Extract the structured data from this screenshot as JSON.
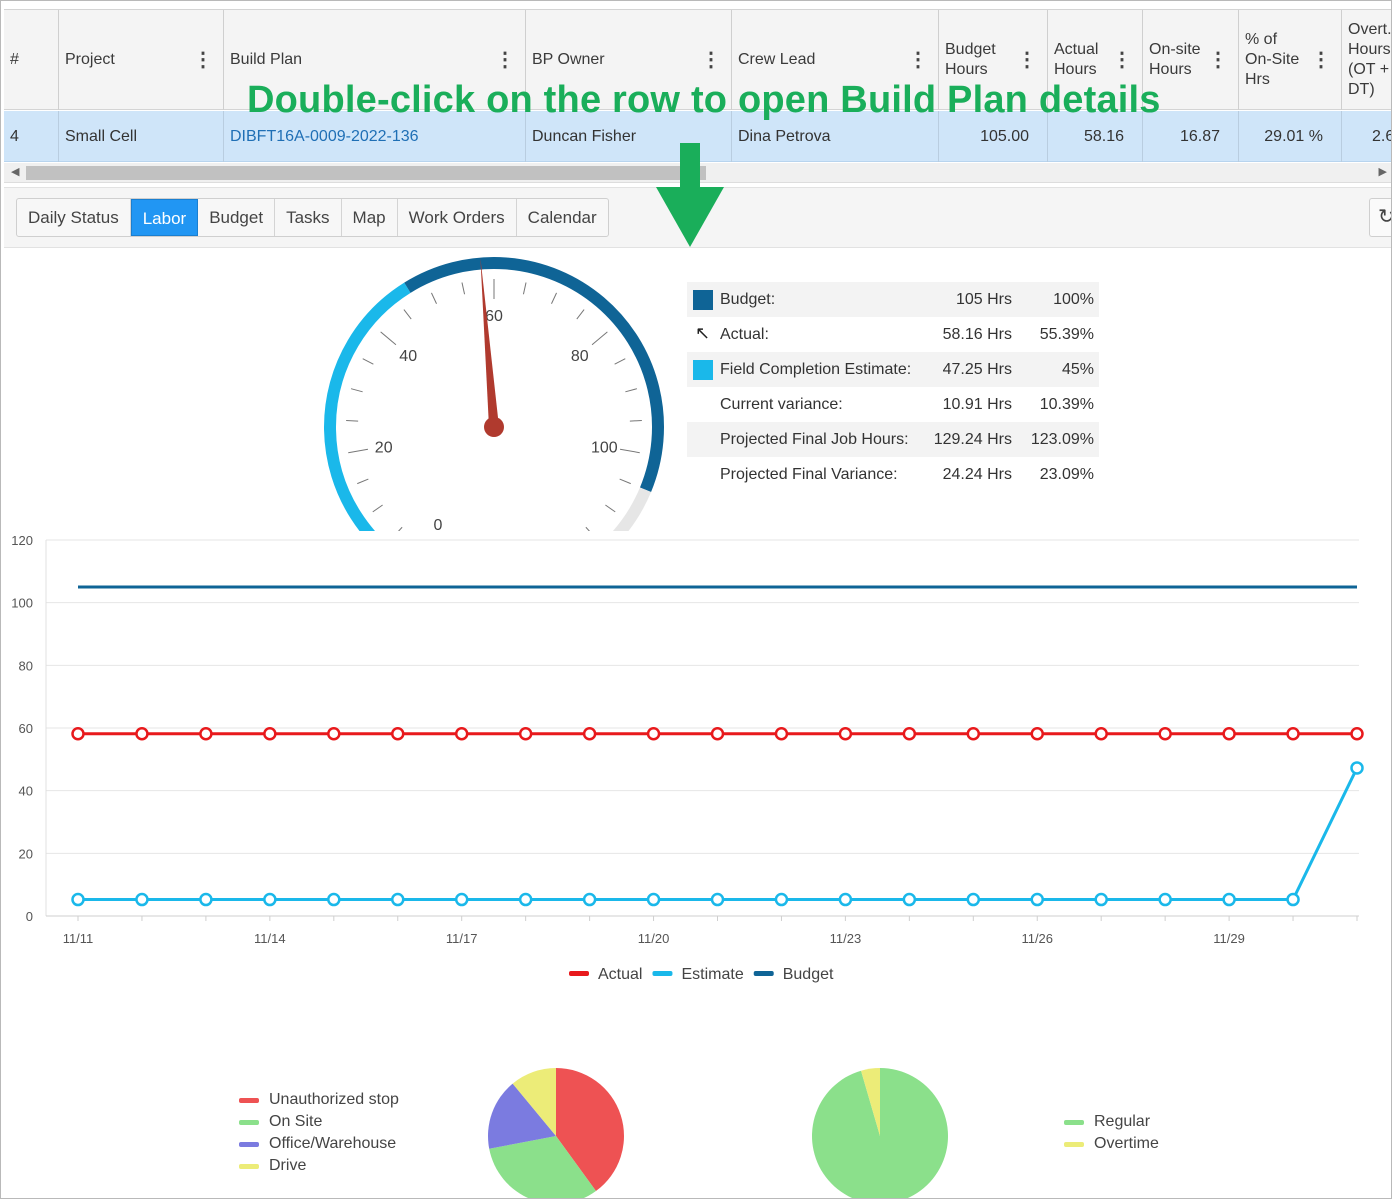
{
  "grid": {
    "columns": [
      {
        "label": "#",
        "menu": false
      },
      {
        "label": "Project",
        "menu": true
      },
      {
        "label": "Build Plan",
        "menu": true
      },
      {
        "label": "BP Owner",
        "menu": true
      },
      {
        "label": "Crew Lead",
        "menu": true
      },
      {
        "label": "Budget Hours",
        "menu": true
      },
      {
        "label": "Actual Hours",
        "menu": true
      },
      {
        "label": "On-site Hours",
        "menu": true
      },
      {
        "label": "% of On-Site Hrs",
        "menu": true
      },
      {
        "label": "Overt. Hours (OT + DT)",
        "menu": false
      }
    ],
    "row": {
      "index": "4",
      "project": "Small Cell",
      "build_plan": "DIBFT16A-0009-2022-136",
      "bp_owner": "Duncan Fisher",
      "crew_lead": "Dina Petrova",
      "budget_hours": "105.00",
      "actual_hours": "58.16",
      "onsite_hours": "16.87",
      "pct_onsite": "29.01 %",
      "overtime": "2.6"
    }
  },
  "overlay": {
    "instruction": "Double-click on the row to open Build Plan details",
    "color": "#1aae5a"
  },
  "tabs": [
    {
      "label": "Daily Status",
      "active": false
    },
    {
      "label": "Labor",
      "active": true
    },
    {
      "label": "Budget",
      "active": false
    },
    {
      "label": "Tasks",
      "active": false
    },
    {
      "label": "Map",
      "active": false
    },
    {
      "label": "Work Orders",
      "active": false
    },
    {
      "label": "Calendar",
      "active": false
    }
  ],
  "refresh_icon": "refresh-icon",
  "gauge": {
    "min": 0,
    "max": 120,
    "value": 58.16,
    "estimate": 47.25,
    "budget": 105,
    "tick_labels": [
      "0",
      "20",
      "40",
      "60",
      "80",
      "100"
    ],
    "colors": {
      "estimate": "#1ab8ea",
      "budget": "#0f6496",
      "rest": "#e6e6e6",
      "needle": "#b03a2e"
    }
  },
  "summary": [
    {
      "label": "Budget:",
      "hours": "105 Hrs",
      "pct": "100%",
      "marker": "swatch",
      "color": "#0f6496"
    },
    {
      "label": "Actual:",
      "hours": "58.16 Hrs",
      "pct": "55.39%",
      "marker": "pointer-icon",
      "color": ""
    },
    {
      "label": "Field Completion Estimate:",
      "hours": "47.25 Hrs",
      "pct": "45%",
      "marker": "swatch",
      "color": "#1ab8ea"
    },
    {
      "label": "Current variance:",
      "hours": "10.91 Hrs",
      "pct": "10.39%",
      "marker": "none",
      "color": ""
    },
    {
      "label": "Projected Final Job Hours:",
      "hours": "129.24 Hrs",
      "pct": "123.09%",
      "marker": "none",
      "color": ""
    },
    {
      "label": "Projected Final Variance:",
      "hours": "24.24 Hrs",
      "pct": "23.09%",
      "marker": "none",
      "color": ""
    }
  ],
  "chart_data": [
    {
      "type": "line",
      "x": [
        "11/11",
        "11/12",
        "11/13",
        "11/14",
        "11/15",
        "11/16",
        "11/17",
        "11/18",
        "11/19",
        "11/20",
        "11/21",
        "11/22",
        "11/23",
        "11/24",
        "11/25",
        "11/26",
        "11/27",
        "11/28",
        "11/29",
        "11/30",
        "12/1"
      ],
      "x_tick_labels": [
        "11/11",
        "11/14",
        "11/17",
        "11/20",
        "11/23",
        "11/26",
        "11/29"
      ],
      "ylim": [
        0,
        120
      ],
      "y_ticks": [
        0,
        20,
        40,
        60,
        80,
        100,
        120
      ],
      "grid": true,
      "legend": "bottom",
      "series": [
        {
          "name": "Actual",
          "color": "#e8191c",
          "markers": true,
          "values": [
            58.16,
            58.16,
            58.16,
            58.16,
            58.16,
            58.16,
            58.16,
            58.16,
            58.16,
            58.16,
            58.16,
            58.16,
            58.16,
            58.16,
            58.16,
            58.16,
            58.16,
            58.16,
            58.16,
            58.16,
            58.16
          ]
        },
        {
          "name": "Estimate",
          "color": "#1ab8ea",
          "markers": true,
          "values": [
            5.25,
            5.25,
            5.25,
            5.25,
            5.25,
            5.25,
            5.25,
            5.25,
            5.25,
            5.25,
            5.25,
            5.25,
            5.25,
            5.25,
            5.25,
            5.25,
            5.25,
            5.25,
            5.25,
            5.25,
            47.25
          ]
        },
        {
          "name": "Budget",
          "color": "#0f6496",
          "markers": false,
          "values": [
            105,
            105,
            105,
            105,
            105,
            105,
            105,
            105,
            105,
            105,
            105,
            105,
            105,
            105,
            105,
            105,
            105,
            105,
            105,
            105,
            105
          ]
        }
      ]
    },
    {
      "type": "pie",
      "legend": "left",
      "series": [
        {
          "name": "Unauthorized stop",
          "value": 40,
          "color": "#ee5253"
        },
        {
          "name": "On Site",
          "value": 32,
          "color": "#8be08b"
        },
        {
          "name": "Office/Warehouse",
          "value": 17,
          "color": "#7b7be0"
        },
        {
          "name": "Drive",
          "value": 11,
          "color": "#ecec78"
        }
      ]
    },
    {
      "type": "pie",
      "legend": "right",
      "series": [
        {
          "name": "Regular",
          "value": 95.5,
          "color": "#8be08b"
        },
        {
          "name": "Overtime",
          "value": 4.5,
          "color": "#ecec78"
        }
      ]
    }
  ]
}
